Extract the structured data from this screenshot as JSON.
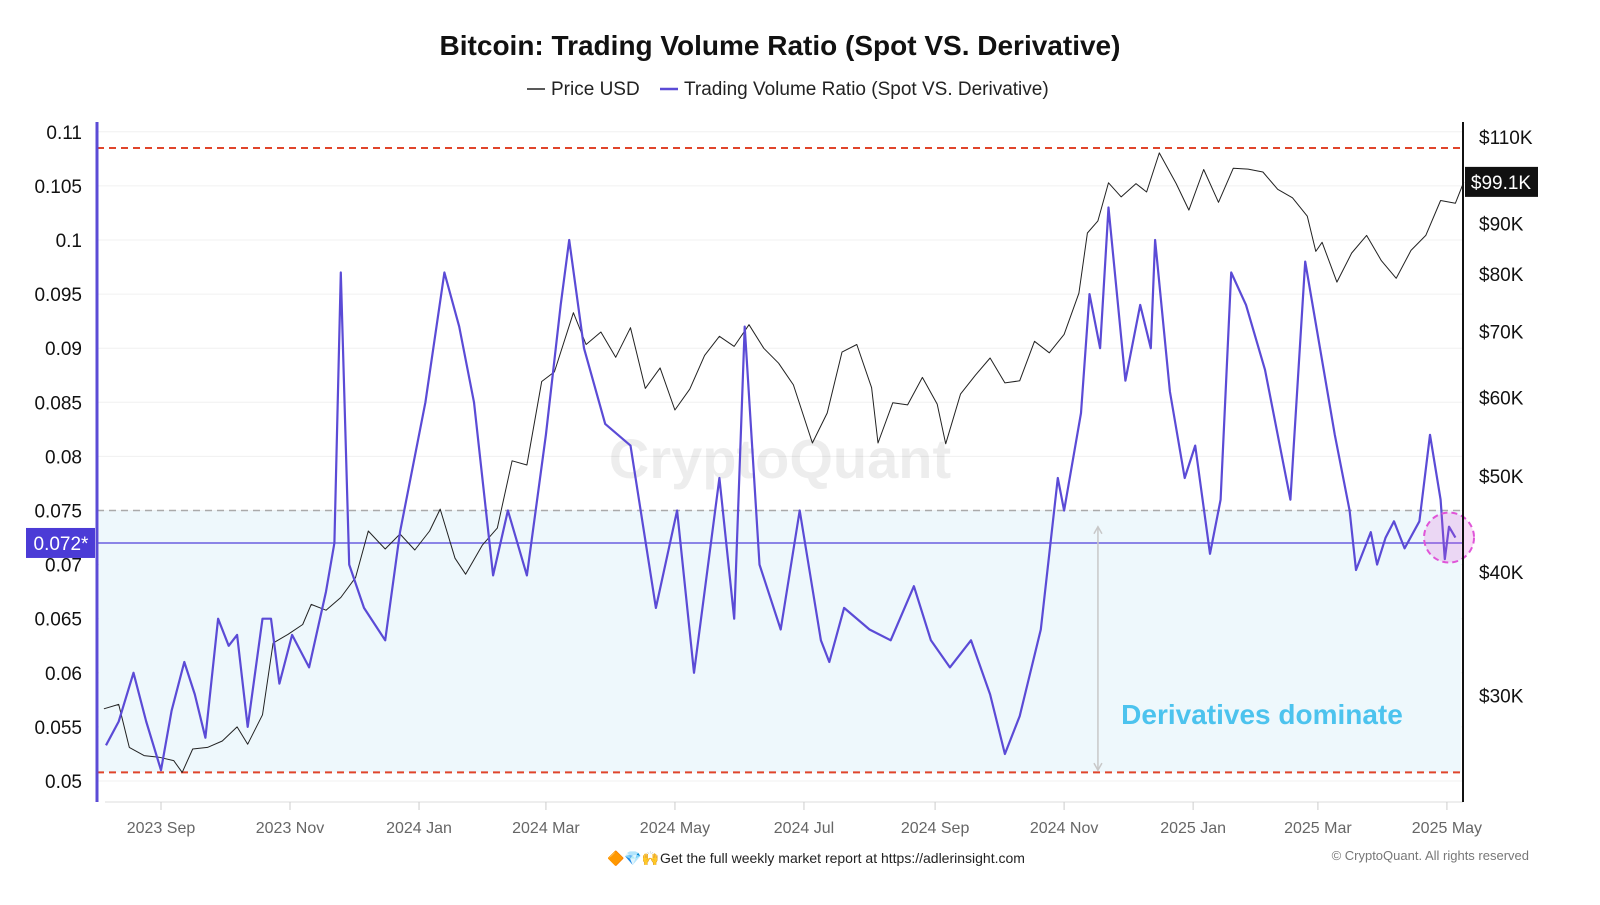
{
  "chart_data": {
    "type": "line",
    "title": "Bitcoin: Trading Volume Ratio (Spot VS. Derivative)",
    "legend": {
      "placement": "top-center",
      "entries": [
        "Price USD",
        "Trading Volume Ratio (Spot VS. Derivative)"
      ]
    },
    "watermark": "CryptoQuant",
    "grid": true,
    "xlim": [
      "2023-08-04",
      "2025-05-12"
    ],
    "x_ticks": [
      {
        "date": "2023-09-01",
        "label": "2023 Sep"
      },
      {
        "date": "2023-11-01",
        "label": "2023 Nov"
      },
      {
        "date": "2024-01-01",
        "label": "2024 Jan"
      },
      {
        "date": "2024-03-01",
        "label": "2024 Mar"
      },
      {
        "date": "2024-05-01",
        "label": "2024 May"
      },
      {
        "date": "2024-07-01",
        "label": "2024 Jul"
      },
      {
        "date": "2024-09-01",
        "label": "2024 Sep"
      },
      {
        "date": "2024-11-01",
        "label": "2024 Nov"
      },
      {
        "date": "2025-01-01",
        "label": "2025 Jan"
      },
      {
        "date": "2025-03-01",
        "label": "2025 Mar"
      },
      {
        "date": "2025-05-01",
        "label": "2025 May"
      }
    ],
    "y_left": {
      "lim": [
        0.048,
        0.1115
      ],
      "scale": "linear",
      "ticks": [
        {
          "v": 0.11,
          "label": "0.11"
        },
        {
          "v": 0.105,
          "label": "0.105"
        },
        {
          "v": 0.1,
          "label": "0.1"
        },
        {
          "v": 0.095,
          "label": "0.095"
        },
        {
          "v": 0.09,
          "label": "0.09"
        },
        {
          "v": 0.085,
          "label": "0.085"
        },
        {
          "v": 0.08,
          "label": "0.08"
        },
        {
          "v": 0.075,
          "label": "0.075"
        },
        {
          "v": 0.07,
          "label": "0.07"
        },
        {
          "v": 0.065,
          "label": "0.065"
        },
        {
          "v": 0.06,
          "label": "0.06"
        },
        {
          "v": 0.055,
          "label": "0.055"
        },
        {
          "v": 0.05,
          "label": "0.05"
        }
      ],
      "current": {
        "v": 0.072,
        "label": "0.072*"
      }
    },
    "y_right": {
      "scale": "log",
      "ticks": [
        {
          "v": 110000,
          "label": "$110K"
        },
        {
          "v": 90000,
          "label": "$90K"
        },
        {
          "v": 80000,
          "label": "$80K"
        },
        {
          "v": 70000,
          "label": "$70K"
        },
        {
          "v": 60000,
          "label": "$60K"
        },
        {
          "v": 50000,
          "label": "$50K"
        },
        {
          "v": 40000,
          "label": "$40K"
        },
        {
          "v": 30000,
          "label": "$30K"
        }
      ],
      "current": {
        "v": 99100,
        "label": "$99.1K"
      }
    },
    "reference_lines": {
      "upper_red": 0.1085,
      "lower_red": 0.0508,
      "gray_dashed": 0.075,
      "current_ratio": 0.072
    },
    "annotation": {
      "text": "Derivatives dominate",
      "arrow_from": 0.0735,
      "arrow_to": 0.051,
      "date": "2024-11-17"
    },
    "highlight_circle": {
      "date": "2025-05-02",
      "v": 0.0725
    },
    "colors": {
      "price": "#222222",
      "ratio": "#5b4bd6",
      "red_line": "#e0452b",
      "gray_line": "#aaaaaa",
      "shade": "#eef8fc",
      "annotation": "#4cc3ee",
      "highlight": "#e055d8",
      "badge_ratio": "#4b3bd6",
      "badge_price": "#111111"
    },
    "series": [
      {
        "name": "Price USD",
        "axis": "right",
        "points": [
          [
            "2023-08-05",
            29100
          ],
          [
            "2023-08-12",
            29400
          ],
          [
            "2023-08-17",
            26600
          ],
          [
            "2023-08-24",
            26100
          ],
          [
            "2023-08-31",
            26000
          ],
          [
            "2023-09-07",
            25800
          ],
          [
            "2023-09-11",
            25100
          ],
          [
            "2023-09-16",
            26500
          ],
          [
            "2023-09-23",
            26600
          ],
          [
            "2023-09-30",
            27000
          ],
          [
            "2023-10-07",
            27900
          ],
          [
            "2023-10-12",
            26800
          ],
          [
            "2023-10-19",
            28700
          ],
          [
            "2023-10-24",
            33900
          ],
          [
            "2023-10-31",
            34600
          ],
          [
            "2023-11-07",
            35400
          ],
          [
            "2023-11-11",
            37100
          ],
          [
            "2023-11-18",
            36600
          ],
          [
            "2023-11-25",
            37700
          ],
          [
            "2023-12-02",
            39500
          ],
          [
            "2023-12-08",
            44000
          ],
          [
            "2023-12-16",
            42200
          ],
          [
            "2023-12-23",
            43700
          ],
          [
            "2023-12-30",
            42100
          ],
          [
            "2024-01-06",
            44000
          ],
          [
            "2024-01-11",
            46300
          ],
          [
            "2024-01-18",
            41300
          ],
          [
            "2024-01-23",
            39800
          ],
          [
            "2024-01-31",
            42600
          ],
          [
            "2024-02-07",
            44300
          ],
          [
            "2024-02-14",
            51800
          ],
          [
            "2024-02-21",
            51300
          ],
          [
            "2024-02-28",
            62300
          ],
          [
            "2024-03-05",
            63700
          ],
          [
            "2024-03-14",
            73100
          ],
          [
            "2024-03-20",
            67900
          ],
          [
            "2024-03-27",
            69900
          ],
          [
            "2024-04-03",
            65900
          ],
          [
            "2024-04-10",
            70600
          ],
          [
            "2024-04-17",
            61300
          ],
          [
            "2024-04-24",
            64300
          ],
          [
            "2024-05-01",
            58300
          ],
          [
            "2024-05-08",
            61200
          ],
          [
            "2024-05-15",
            66200
          ],
          [
            "2024-05-22",
            69200
          ],
          [
            "2024-05-29",
            67600
          ],
          [
            "2024-06-05",
            71100
          ],
          [
            "2024-06-12",
            67300
          ],
          [
            "2024-06-19",
            65000
          ],
          [
            "2024-06-26",
            61800
          ],
          [
            "2024-07-05",
            54000
          ],
          [
            "2024-07-12",
            57900
          ],
          [
            "2024-07-19",
            66700
          ],
          [
            "2024-07-26",
            67900
          ],
          [
            "2024-08-02",
            61400
          ],
          [
            "2024-08-05",
            54000
          ],
          [
            "2024-08-12",
            59300
          ],
          [
            "2024-08-19",
            59000
          ],
          [
            "2024-08-26",
            62900
          ],
          [
            "2024-09-02",
            59100
          ],
          [
            "2024-09-06",
            53900
          ],
          [
            "2024-09-13",
            60500
          ],
          [
            "2024-09-20",
            63200
          ],
          [
            "2024-09-27",
            65800
          ],
          [
            "2024-10-04",
            62100
          ],
          [
            "2024-10-11",
            62400
          ],
          [
            "2024-10-18",
            68400
          ],
          [
            "2024-10-25",
            66600
          ],
          [
            "2024-11-01",
            69500
          ],
          [
            "2024-11-08",
            76500
          ],
          [
            "2024-11-12",
            88000
          ],
          [
            "2024-11-17",
            90500
          ],
          [
            "2024-11-22",
            98900
          ],
          [
            "2024-11-28",
            95700
          ],
          [
            "2024-12-05",
            98700
          ],
          [
            "2024-12-10",
            96800
          ],
          [
            "2024-12-16",
            106000
          ],
          [
            "2024-12-24",
            98700
          ],
          [
            "2024-12-30",
            92800
          ],
          [
            "2025-01-06",
            102000
          ],
          [
            "2025-01-13",
            94500
          ],
          [
            "2025-01-20",
            102300
          ],
          [
            "2025-01-27",
            102100
          ],
          [
            "2025-02-03",
            101400
          ],
          [
            "2025-02-10",
            97400
          ],
          [
            "2025-02-17",
            95500
          ],
          [
            "2025-02-24",
            91500
          ],
          [
            "2025-02-28",
            84300
          ],
          [
            "2025-03-03",
            86100
          ],
          [
            "2025-03-10",
            78500
          ],
          [
            "2025-03-17",
            84000
          ],
          [
            "2025-03-24",
            87500
          ],
          [
            "2025-03-31",
            82500
          ],
          [
            "2025-04-07",
            79200
          ],
          [
            "2025-04-14",
            84500
          ],
          [
            "2025-04-21",
            87500
          ],
          [
            "2025-04-28",
            94900
          ],
          [
            "2025-05-05",
            94300
          ],
          [
            "2025-05-09",
            99100
          ]
        ]
      },
      {
        "name": "Trading Volume Ratio (Spot VS. Derivative)",
        "axis": "left",
        "points": [
          [
            "2023-08-06",
            0.0533
          ],
          [
            "2023-08-12",
            0.0555
          ],
          [
            "2023-08-19",
            0.06
          ],
          [
            "2023-08-25",
            0.0555
          ],
          [
            "2023-09-01",
            0.051
          ],
          [
            "2023-09-06",
            0.0565
          ],
          [
            "2023-09-12",
            0.061
          ],
          [
            "2023-09-17",
            0.058
          ],
          [
            "2023-09-22",
            0.054
          ],
          [
            "2023-09-28",
            0.065
          ],
          [
            "2023-10-03",
            0.0625
          ],
          [
            "2023-10-07",
            0.0635
          ],
          [
            "2023-10-12",
            0.055
          ],
          [
            "2023-10-19",
            0.065
          ],
          [
            "2023-10-23",
            0.065
          ],
          [
            "2023-10-27",
            0.059
          ],
          [
            "2023-11-02",
            0.0635
          ],
          [
            "2023-11-10",
            0.0605
          ],
          [
            "2023-11-18",
            0.0675
          ],
          [
            "2023-11-22",
            0.072
          ],
          [
            "2023-11-25",
            0.097
          ],
          [
            "2023-11-29",
            0.07
          ],
          [
            "2023-12-06",
            0.066
          ],
          [
            "2023-12-16",
            0.063
          ],
          [
            "2023-12-23",
            0.073
          ],
          [
            "2024-01-04",
            0.085
          ],
          [
            "2024-01-13",
            0.097
          ],
          [
            "2024-01-20",
            0.092
          ],
          [
            "2024-01-27",
            0.085
          ],
          [
            "2024-02-05",
            0.069
          ],
          [
            "2024-02-12",
            0.075
          ],
          [
            "2024-02-21",
            0.069
          ],
          [
            "2024-03-01",
            0.082
          ],
          [
            "2024-03-08",
            0.094
          ],
          [
            "2024-03-12",
            0.1
          ],
          [
            "2024-03-19",
            0.09
          ],
          [
            "2024-03-29",
            0.083
          ],
          [
            "2024-04-10",
            0.081
          ],
          [
            "2024-04-22",
            0.066
          ],
          [
            "2024-05-02",
            0.075
          ],
          [
            "2024-05-10",
            0.06
          ],
          [
            "2024-05-22",
            0.078
          ],
          [
            "2024-05-29",
            0.065
          ],
          [
            "2024-06-03",
            0.092
          ],
          [
            "2024-06-10",
            0.07
          ],
          [
            "2024-06-20",
            0.064
          ],
          [
            "2024-06-29",
            0.075
          ],
          [
            "2024-07-09",
            0.063
          ],
          [
            "2024-07-13",
            0.061
          ],
          [
            "2024-07-20",
            0.066
          ],
          [
            "2024-08-01",
            0.064
          ],
          [
            "2024-08-11",
            0.063
          ],
          [
            "2024-08-22",
            0.068
          ],
          [
            "2024-08-30",
            0.063
          ],
          [
            "2024-09-08",
            0.0605
          ],
          [
            "2024-09-18",
            0.063
          ],
          [
            "2024-09-27",
            0.058
          ],
          [
            "2024-10-04",
            0.0525
          ],
          [
            "2024-10-11",
            0.056
          ],
          [
            "2024-10-21",
            0.064
          ],
          [
            "2024-10-29",
            0.078
          ],
          [
            "2024-11-01",
            0.075
          ],
          [
            "2024-11-09",
            0.084
          ],
          [
            "2024-11-13",
            0.095
          ],
          [
            "2024-11-18",
            0.09
          ],
          [
            "2024-11-22",
            0.103
          ],
          [
            "2024-11-30",
            0.087
          ],
          [
            "2024-12-07",
            0.094
          ],
          [
            "2024-12-12",
            0.09
          ],
          [
            "2024-12-14",
            0.1
          ],
          [
            "2024-12-21",
            0.086
          ],
          [
            "2024-12-28",
            0.078
          ],
          [
            "2025-01-02",
            0.081
          ],
          [
            "2025-01-09",
            0.071
          ],
          [
            "2025-01-14",
            0.076
          ],
          [
            "2025-01-19",
            0.097
          ],
          [
            "2025-01-26",
            0.094
          ],
          [
            "2025-02-04",
            0.088
          ],
          [
            "2025-02-11",
            0.081
          ],
          [
            "2025-02-16",
            0.076
          ],
          [
            "2025-02-23",
            0.098
          ],
          [
            "2025-03-02",
            0.09
          ],
          [
            "2025-03-09",
            0.082
          ],
          [
            "2025-03-16",
            0.075
          ],
          [
            "2025-03-19",
            0.0695
          ],
          [
            "2025-03-26",
            0.073
          ],
          [
            "2025-03-29",
            0.07
          ],
          [
            "2025-04-02",
            0.0725
          ],
          [
            "2025-04-06",
            0.074
          ],
          [
            "2025-04-11",
            0.0715
          ],
          [
            "2025-04-18",
            0.074
          ],
          [
            "2025-04-23",
            0.082
          ],
          [
            "2025-04-28",
            0.076
          ],
          [
            "2025-04-30",
            0.0705
          ],
          [
            "2025-05-02",
            0.0735
          ],
          [
            "2025-05-05",
            0.0725
          ]
        ]
      }
    ]
  },
  "footer": {
    "emoji": "🔶💎🙌",
    "promo": "Get the full weekly market report at https://adlerinsight.com",
    "copyright": "© CryptoQuant. All rights reserved"
  }
}
